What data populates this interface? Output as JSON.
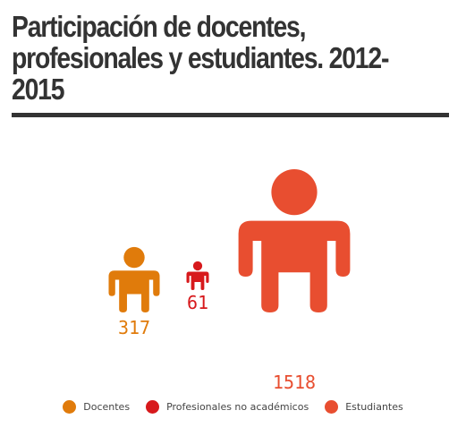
{
  "header": {
    "title_lines": [
      "Participación de docentes,",
      "profesionales y estudiantes. 2012-",
      "2015"
    ]
  },
  "chart_data": {
    "type": "pictograph",
    "title": "Participación de docentes, profesionales y estudiantes. 2012-2015",
    "categories": [
      "Docentes",
      "Profesionales no académicos",
      "Estudiantes"
    ],
    "values": [
      317,
      61,
      1518
    ],
    "colors": [
      "#E07B0B",
      "#D7191C",
      "#E84E30"
    ],
    "legend": "bottom-center"
  }
}
